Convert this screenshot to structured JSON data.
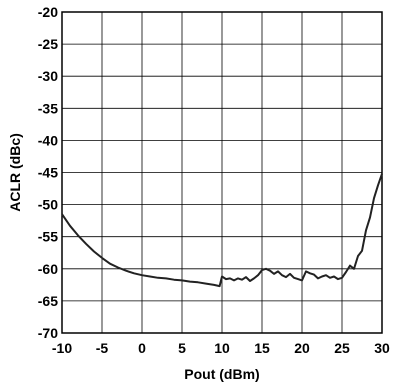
{
  "chart_data": {
    "type": "line",
    "title": "",
    "xlabel": "Pout (dBm)",
    "ylabel": "ACLR (dBc)",
    "xlim": [
      -10,
      30
    ],
    "ylim": [
      -70,
      -20
    ],
    "x_ticks": [
      -10,
      -5,
      0,
      5,
      10,
      15,
      20,
      25,
      30
    ],
    "y_ticks": [
      -20,
      -25,
      -30,
      -35,
      -40,
      -45,
      -50,
      -55,
      -60,
      -65,
      -70
    ],
    "x_tick_labels": [
      "-10",
      "-5",
      "0",
      "5",
      "10",
      "15",
      "20",
      "25",
      "30"
    ],
    "y_tick_labels": [
      "-20",
      "-25",
      "-30",
      "-35",
      "-40",
      "-45",
      "-50",
      "-55",
      "-60",
      "-65",
      "-70"
    ],
    "grid": true,
    "legend": "none",
    "line_color": "#222222",
    "series": [
      {
        "x": [
          -10,
          -9,
          -8,
          -7,
          -6,
          -5,
          -4,
          -3,
          -2,
          -1,
          0,
          1,
          2,
          3,
          4,
          5,
          6,
          7,
          8,
          9,
          9.7,
          10,
          10.5,
          11,
          11.5,
          12,
          12.5,
          13,
          13.5,
          14,
          14.5,
          15,
          15.5,
          16,
          16.5,
          17,
          17.5,
          18,
          18.5,
          19,
          19.5,
          20,
          20.5,
          21,
          21.5,
          22,
          22.5,
          23,
          23.5,
          24,
          24.5,
          25,
          25.5,
          26,
          26.5,
          27,
          27.5,
          28,
          28.5,
          29,
          29.5,
          30
        ],
        "y": [
          -51.5,
          -53.3,
          -54.8,
          -56.1,
          -57.3,
          -58.3,
          -59.2,
          -59.8,
          -60.3,
          -60.7,
          -61.0,
          -61.2,
          -61.4,
          -61.5,
          -61.7,
          -61.8,
          -62.0,
          -62.1,
          -62.3,
          -62.5,
          -62.7,
          -61.2,
          -61.6,
          -61.5,
          -61.8,
          -61.5,
          -61.7,
          -61.3,
          -61.9,
          -61.5,
          -61.0,
          -60.2,
          -60.0,
          -60.3,
          -60.8,
          -60.4,
          -61.0,
          -61.3,
          -60.8,
          -61.4,
          -61.6,
          -61.8,
          -60.4,
          -60.7,
          -60.9,
          -61.5,
          -61.2,
          -61.0,
          -61.4,
          -61.2,
          -61.6,
          -61.4,
          -60.5,
          -59.5,
          -60.0,
          -58.0,
          -57.2,
          -54.0,
          -52.0,
          -49.0,
          -47.0,
          -45.2
        ]
      }
    ]
  }
}
